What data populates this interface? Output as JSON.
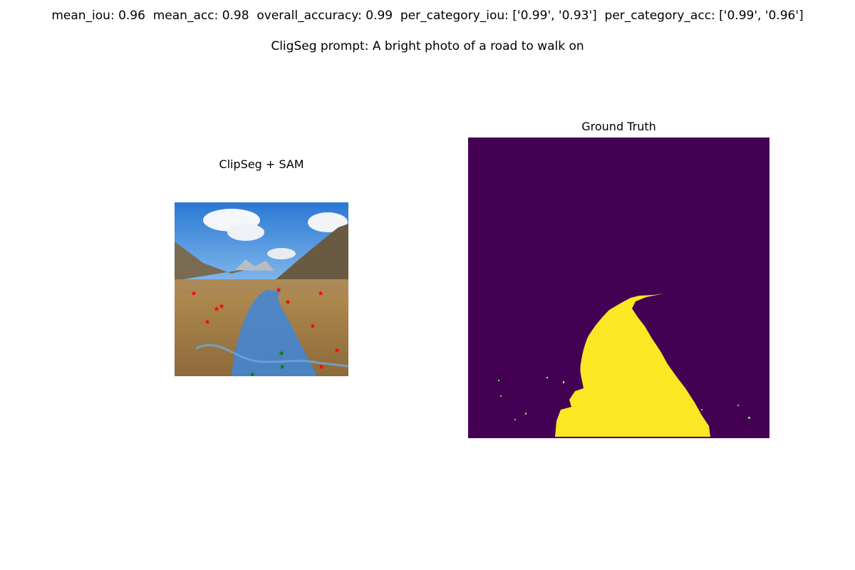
{
  "header": {
    "metrics_line": "mean_iou: 0.96  mean_acc: 0.98  overall_accuracy: 0.99  per_category_iou: ['0.99', '0.93']  per_category_acc: ['0.99', '0.96']",
    "prompt_line": "CligSeg prompt: A bright photo of a road to walk on"
  },
  "panels": {
    "left": {
      "title": "ClipSeg + SAM",
      "markers": {
        "negative_color": "#ff0000",
        "positive_color": "#008000",
        "mask_color": "#3f86d9"
      }
    },
    "right": {
      "title": "Ground Truth",
      "background_color": "#440154",
      "mask_color": "#fde725"
    }
  }
}
